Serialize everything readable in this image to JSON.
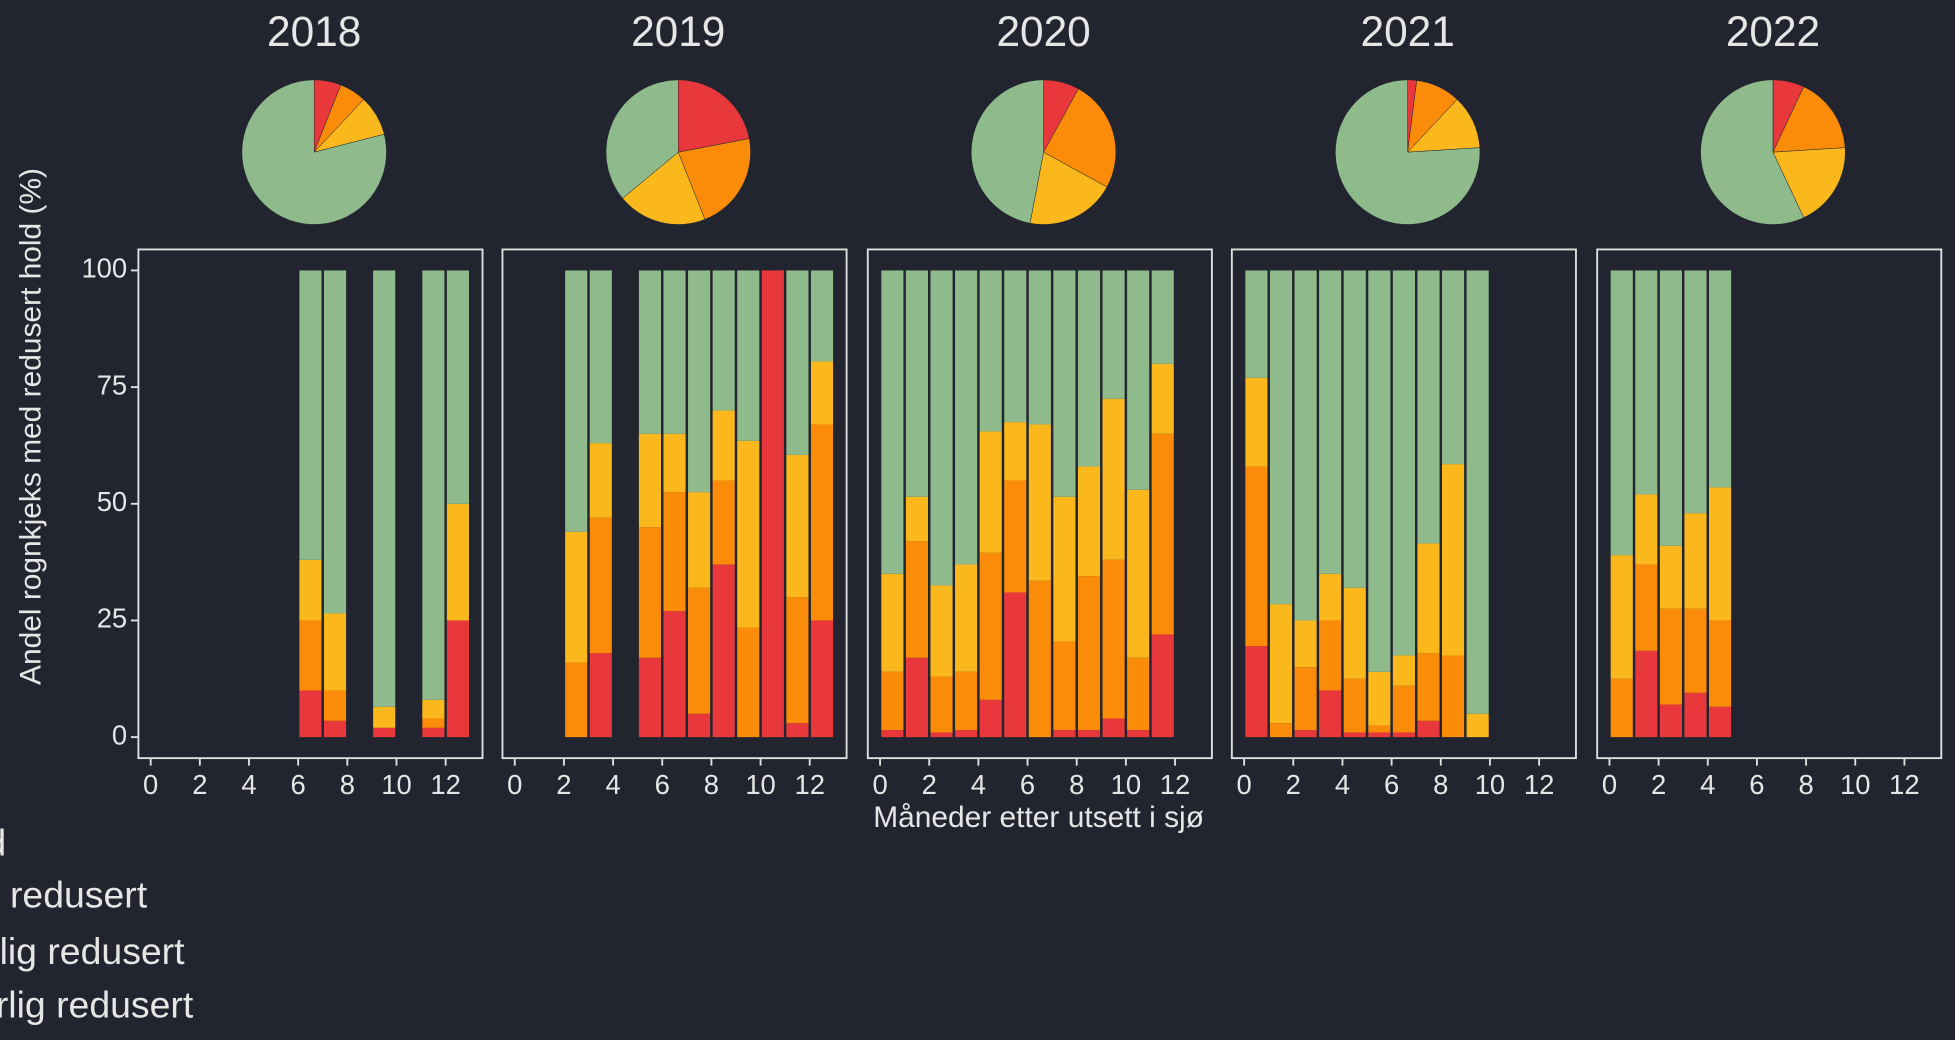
{
  "ylabel": "Andel rognkjeks med redusert hold (%)",
  "xlabel": "Måneder etter utsett i sjø",
  "legend": [
    {
      "name": "Alvorlig redusert",
      "color": "#e8383b"
    },
    {
      "name": "Betydelig redusert",
      "color": "#fb8c0a"
    },
    {
      "name": "Noe redusert",
      "color": "#fbb81c"
    },
    {
      "name": "God",
      "color": "#8fba8b"
    }
  ],
  "chart_data": [
    {
      "type": "pie",
      "title": "2018",
      "values": [
        6,
        6,
        9,
        79
      ]
    },
    {
      "type": "pie",
      "title": "2019",
      "values": [
        22,
        22,
        20,
        36
      ]
    },
    {
      "type": "pie",
      "title": "2020",
      "values": [
        8,
        25,
        20,
        47
      ]
    },
    {
      "type": "pie",
      "title": "2021",
      "values": [
        2,
        10,
        12,
        76
      ]
    },
    {
      "type": "pie",
      "title": "2022",
      "values": [
        7,
        17,
        19,
        57
      ]
    },
    {
      "type": "bar",
      "stacked": true,
      "x": [
        6,
        7,
        9,
        11,
        12
      ],
      "xlim": [
        -0.5,
        13.5
      ],
      "xticks": [
        0,
        2,
        4,
        6,
        8,
        10,
        12
      ],
      "ylim": [
        -4.5,
        104.5
      ],
      "yticks": [
        0,
        25,
        50,
        75,
        100
      ],
      "series": [
        {
          "values": [
            10,
            3.5,
            2,
            2,
            25
          ]
        },
        {
          "values": [
            15,
            6.5,
            0,
            2,
            0
          ]
        },
        {
          "values": [
            13,
            16.5,
            4.5,
            4,
            25
          ]
        },
        {
          "values": [
            62,
            73.5,
            93.5,
            92,
            50
          ]
        }
      ]
    },
    {
      "type": "bar",
      "stacked": true,
      "x": [
        2,
        3,
        5,
        6,
        7,
        8,
        9,
        10,
        11,
        12
      ],
      "xlim": [
        -0.5,
        13.5
      ],
      "xticks": [
        0,
        2,
        4,
        6,
        8,
        10,
        12
      ],
      "ylim": [
        -4.5,
        104.5
      ],
      "series": [
        {
          "values": [
            0,
            18,
            17,
            27,
            5,
            37,
            0,
            100,
            3,
            25
          ]
        },
        {
          "values": [
            16,
            29,
            28,
            25.5,
            27,
            18,
            23.5,
            0,
            27,
            42
          ]
        },
        {
          "values": [
            28,
            16,
            20,
            12.5,
            20.5,
            15,
            40,
            0,
            30.5,
            13.5
          ]
        },
        {
          "values": [
            56,
            37,
            35,
            35,
            47.5,
            30,
            36.5,
            0,
            39.5,
            19.5
          ]
        }
      ]
    },
    {
      "type": "bar",
      "stacked": true,
      "x": [
        0,
        1,
        2,
        3,
        4,
        5,
        6,
        7,
        8,
        9,
        10,
        11
      ],
      "xlim": [
        -0.5,
        13.5
      ],
      "xticks": [
        0,
        2,
        4,
        6,
        8,
        10,
        12
      ],
      "ylim": [
        -4.5,
        104.5
      ],
      "series": [
        {
          "values": [
            1.5,
            17,
            1,
            1.5,
            8,
            31,
            0,
            1.5,
            1.5,
            4,
            1.5,
            22
          ]
        },
        {
          "values": [
            12.5,
            25,
            12,
            12.5,
            31.5,
            24,
            33.5,
            19,
            33,
            34,
            15.5,
            43
          ]
        },
        {
          "values": [
            21,
            9.5,
            19.5,
            23,
            26,
            12.5,
            33.5,
            31,
            23.5,
            34.5,
            36,
            15
          ]
        },
        {
          "values": [
            65,
            48.5,
            67.5,
            63,
            34.5,
            32.5,
            33,
            48.5,
            42,
            27.5,
            47,
            20
          ]
        }
      ]
    },
    {
      "type": "bar",
      "stacked": true,
      "x": [
        0,
        1,
        2,
        3,
        4,
        5,
        6,
        7,
        8,
        9
      ],
      "xlim": [
        -0.5,
        13.5
      ],
      "xticks": [
        0,
        2,
        4,
        6,
        8,
        10,
        12
      ],
      "ylim": [
        -4.5,
        104.5
      ],
      "series": [
        {
          "values": [
            19.5,
            0,
            1.5,
            10,
            1,
            1,
            1,
            3.5,
            0,
            0
          ]
        },
        {
          "values": [
            38.5,
            3,
            13.5,
            15,
            11.5,
            1.5,
            10,
            14.5,
            17.5,
            0
          ]
        },
        {
          "values": [
            19,
            25.5,
            10,
            10,
            19.5,
            11.5,
            6.5,
            23.5,
            41,
            5
          ]
        },
        {
          "values": [
            23,
            71.5,
            75,
            65,
            68,
            86,
            82.5,
            58.5,
            41.5,
            95
          ]
        }
      ]
    },
    {
      "type": "bar",
      "stacked": true,
      "x": [
        0,
        1,
        2,
        3,
        4
      ],
      "xlim": [
        -0.5,
        13.5
      ],
      "xticks": [
        0,
        2,
        4,
        6,
        8,
        10,
        12
      ],
      "ylim": [
        -4.5,
        104.5
      ],
      "series": [
        {
          "values": [
            0,
            18.5,
            7,
            9.5,
            6.5
          ]
        },
        {
          "values": [
            12.5,
            18.5,
            20.5,
            18,
            18.5
          ]
        },
        {
          "values": [
            26.5,
            15,
            13.5,
            20.5,
            28.5
          ]
        },
        {
          "values": [
            61,
            48,
            59,
            52,
            46.5
          ]
        }
      ]
    }
  ]
}
